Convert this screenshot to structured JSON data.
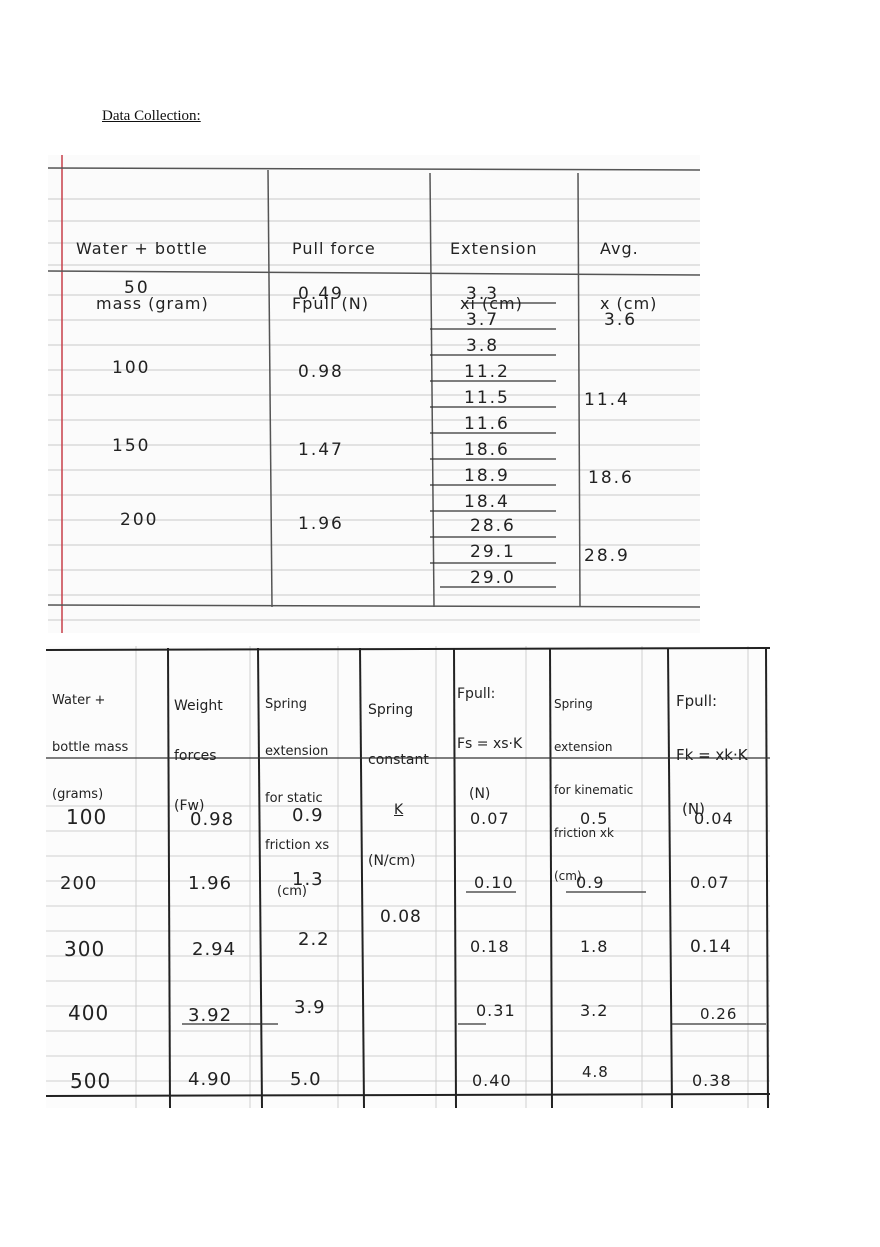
{
  "heading": "Data Collection:",
  "table1": {
    "headers": [
      [
        "Water + bottle",
        "mass (gram)"
      ],
      [
        "Pull force",
        "Fpull (N)"
      ],
      [
        "Extension",
        "xi (cm)"
      ],
      [
        "Avg.",
        "x (cm)"
      ]
    ],
    "rows": [
      {
        "mass": "50",
        "force": "0.49",
        "extensions": [
          "3.3",
          "3.7",
          "3.8"
        ],
        "avg": "3.6"
      },
      {
        "mass": "100",
        "force": "0.98",
        "extensions": [
          "11.2",
          "11.5",
          "11.6"
        ],
        "avg": "11.4"
      },
      {
        "mass": "150",
        "force": "1.47",
        "extensions": [
          "18.6",
          "18.9",
          "18.4"
        ],
        "avg": "18.6"
      },
      {
        "mass": "200",
        "force": "1.96",
        "extensions": [
          "28.6",
          "29.1",
          "29.0"
        ],
        "avg": "28.9"
      }
    ]
  },
  "table2": {
    "headers": [
      [
        "Water +",
        "bottle mass",
        "(grams)"
      ],
      [
        "Weight",
        "forces",
        "(Fw)"
      ],
      [
        "Spring",
        "extension",
        "for static",
        "friction xs",
        "(cm)"
      ],
      [
        "Spring",
        "constant",
        "K",
        "(N/cm)"
      ],
      [
        "Fpull:",
        "Fs = xs·K",
        "(N)"
      ],
      [
        "Spring",
        "extension",
        "for kinematic",
        "friction xk",
        "(cm)"
      ],
      [
        "Fpull:",
        "Fk = xk·K",
        "(N)"
      ]
    ],
    "spring_constant": "0.08",
    "rows": [
      {
        "mass": "100",
        "weight": "0.98",
        "xs": "0.9",
        "fs": "0.07",
        "xk": "0.5",
        "fk": "0.04"
      },
      {
        "mass": "200",
        "weight": "1.96",
        "xs": "1.3",
        "fs": "0.10",
        "xk": "0.9",
        "fk": "0.07"
      },
      {
        "mass": "300",
        "weight": "2.94",
        "xs": "2.2",
        "fs": "0.18",
        "xk": "1.8",
        "fk": "0.14"
      },
      {
        "mass": "400",
        "weight": "3.92",
        "xs": "3.9",
        "fs": "0.31",
        "xk": "3.2",
        "fk": "0.26"
      },
      {
        "mass": "500",
        "weight": "4.90",
        "xs": "5.0",
        "fs": "0.40",
        "xk": "4.8",
        "fk": "0.38"
      }
    ]
  }
}
